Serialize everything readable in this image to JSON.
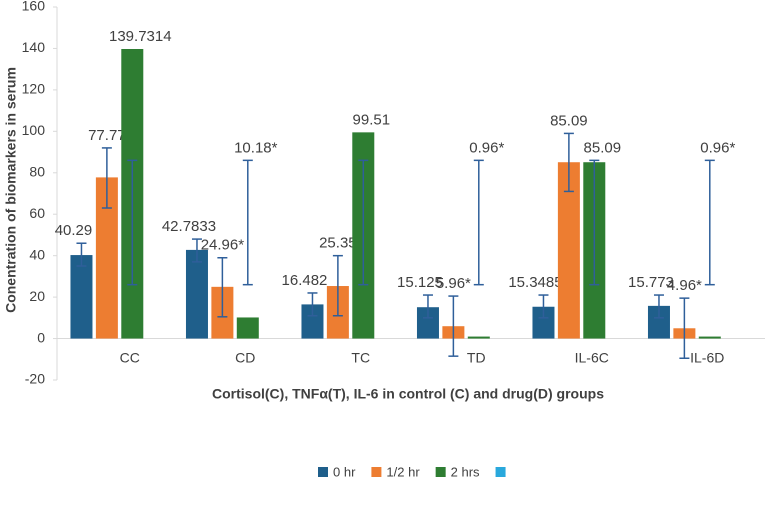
{
  "chart_data": {
    "type": "bar",
    "y_axis_label": "Conentration of biomarkers in serum",
    "x_axis_label": "Cortisol(C),  TNFα(T),  IL-6 in control (C) and drug(D) groups",
    "categories": [
      "CC",
      "CD",
      "TC",
      "TD",
      "IL-6C",
      "IL-6D"
    ],
    "series": [
      {
        "name": "0 hr",
        "color": "#1f5f8b",
        "values": [
          40.29,
          42.7833,
          16.482,
          15.125,
          15.3485,
          15.773
        ],
        "value_labels": [
          "40.29",
          "42.7833",
          "16.482",
          "15.125",
          "15.3485",
          "15.773"
        ],
        "error_low": [
          35,
          37,
          11,
          10,
          10,
          10
        ],
        "error_high": [
          46,
          48,
          22,
          21,
          21,
          21
        ]
      },
      {
        "name": "1/2 hr",
        "color": "#ed7d31",
        "values": [
          77.77,
          24.96,
          25.35,
          5.96,
          85.09,
          4.96
        ],
        "value_labels": [
          "77.77",
          "24.96*",
          "25.35",
          "5.96*",
          "85.09",
          "4.96*"
        ],
        "error_low": [
          63,
          10.5,
          11,
          -8.5,
          71,
          -9.5
        ],
        "error_high": [
          92,
          39,
          40,
          20.5,
          99,
          19.5
        ]
      },
      {
        "name": "2 hrs",
        "color": "#2e7d32",
        "values": [
          139.7314,
          10.18,
          99.51,
          0.96,
          85.09,
          0.96
        ],
        "value_labels": [
          "139.7314",
          "10.18*",
          "99.51",
          "0.96*",
          "85.09",
          "0.96*"
        ],
        "error_low": [
          26,
          26,
          26,
          26,
          26,
          26
        ],
        "error_high": [
          86,
          86,
          86,
          86,
          86,
          86
        ]
      },
      {
        "color": "#29a8dc",
        "values": [
          null,
          null,
          null,
          null,
          null,
          null
        ]
      }
    ],
    "ylim": [
      -20,
      160
    ],
    "yticks": [
      -20,
      0,
      20,
      40,
      60,
      80,
      100,
      120,
      140,
      160
    ],
    "grid": false,
    "legend": "bottom"
  }
}
